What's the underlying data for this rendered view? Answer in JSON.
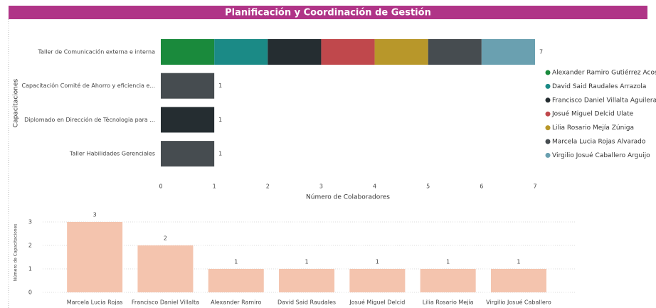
{
  "header": {
    "title": "Planificación y Coordinación de Gestión"
  },
  "chart_data": [
    {
      "type": "stacked-bar-horizontal",
      "ylabel": "Capacitaciones",
      "xlabel": "Número de Colaboradores",
      "categories": [
        "Taller de Comunicación externa e interna",
        "Capacitación Comité de Ahorro y eficiencia e...",
        "Diplomado en Dirección de Técnologia para ...",
        "Taller Habilidades Gerenciales"
      ],
      "series": [
        {
          "name": "Alexander Ramiro Gutiérrez Acosta",
          "color": "#1a8a3c",
          "values": [
            1,
            null,
            null,
            null
          ]
        },
        {
          "name": "David Said Raudales Arrazola",
          "color": "#1b8a86",
          "values": [
            1,
            null,
            null,
            null
          ]
        },
        {
          "name": "Francisco Daniel Villalta Aguilera",
          "color": "#252d31",
          "values": [
            1,
            null,
            1,
            null
          ]
        },
        {
          "name": "Josué Miguel Delcid Ulate",
          "color": "#c0484c",
          "values": [
            1,
            null,
            null,
            null
          ]
        },
        {
          "name": "Lilia Rosario Mejía Zúniga",
          "color": "#b8972a",
          "values": [
            1,
            null,
            null,
            null
          ]
        },
        {
          "name": "Marcela Lucia Rojas Alvarado",
          "color": "#464c50",
          "values": [
            1,
            1,
            null,
            1
          ]
        },
        {
          "name": "Virgilio Josué Caballero Arguijo",
          "color": "#6aa0b0",
          "values": [
            1,
            null,
            null,
            null
          ]
        }
      ],
      "totals": [
        7,
        1,
        1,
        1
      ],
      "xlim": [
        0,
        7
      ],
      "xticks": [
        0,
        1,
        2,
        3,
        4,
        5,
        6,
        7
      ],
      "legend": "right"
    },
    {
      "type": "bar",
      "ylabel": "Número de Capacitaciones",
      "categories": [
        "Marcela Lucia Rojas",
        "Francisco Daniel Villalta",
        "Alexander Ramiro",
        "David Said Raudales",
        "Josué Miguel Delcid",
        "Lilia Rosario Mejía",
        "Virgilio Josué Caballero"
      ],
      "values": [
        3,
        2,
        1,
        1,
        1,
        1,
        1
      ],
      "color": "#f4c4ae",
      "ylim": [
        0,
        3
      ],
      "yticks": [
        0,
        1,
        2,
        3
      ],
      "grid": true
    }
  ]
}
